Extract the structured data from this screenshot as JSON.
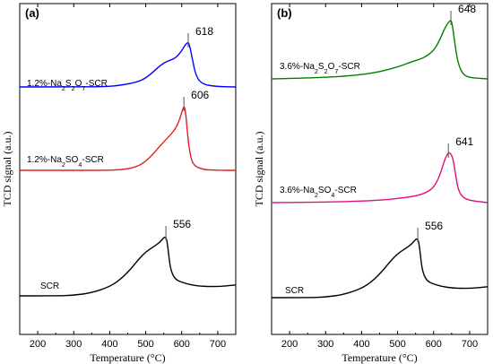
{
  "chart_data": [
    {
      "type": "line",
      "panel_label": "(a)",
      "xlabel": "Temperature (°C)",
      "ylabel": "TCD signal (a.u.)",
      "xlim": [
        150,
        750
      ],
      "xticks": [
        200,
        300,
        400,
        500,
        600,
        700
      ],
      "y_ticks_shown": false,
      "grid": false,
      "series": [
        {
          "name": "1.2%-Na2S2O7-SCR",
          "color": "#0000ff",
          "peak_label": "618",
          "x": [
            150,
            300,
            400,
            440,
            480,
            500,
            520,
            540,
            560,
            580,
            595,
            605,
            612,
            618,
            622,
            628,
            640,
            660,
            700,
            750
          ],
          "y": [
            0.0,
            0.0,
            0.01,
            0.05,
            0.12,
            0.2,
            0.33,
            0.48,
            0.58,
            0.63,
            0.75,
            0.88,
            0.96,
            1.0,
            0.92,
            0.68,
            0.22,
            0.05,
            0.01,
            0.0
          ]
        },
        {
          "name": "1.2%-Na2SO4-SCR",
          "color": "#e02020",
          "peak_label": "606",
          "x": [
            150,
            300,
            400,
            450,
            480,
            500,
            520,
            540,
            560,
            580,
            592,
            600,
            606,
            610,
            614,
            620,
            630,
            660,
            700,
            750
          ],
          "y": [
            0.0,
            0.0,
            0.0,
            0.02,
            0.07,
            0.14,
            0.25,
            0.38,
            0.5,
            0.62,
            0.75,
            0.9,
            1.0,
            0.93,
            0.7,
            0.35,
            0.08,
            0.01,
            0.0,
            0.0
          ]
        },
        {
          "name": "SCR",
          "color": "#000000",
          "peak_label": "556",
          "x": [
            150,
            250,
            300,
            350,
            400,
            430,
            460,
            480,
            500,
            520,
            540,
            556,
            562,
            568,
            580,
            600,
            640,
            700,
            750
          ],
          "y": [
            0.0,
            0.0,
            0.01,
            0.05,
            0.15,
            0.27,
            0.45,
            0.6,
            0.72,
            0.8,
            0.88,
            1.0,
            0.78,
            0.45,
            0.28,
            0.22,
            0.16,
            0.15,
            0.18
          ]
        }
      ]
    },
    {
      "type": "line",
      "panel_label": "(b)",
      "xlabel": "Temperature (°C)",
      "ylabel": "TCD signal (a.u.)",
      "xlim": [
        150,
        750
      ],
      "xticks": [
        200,
        300,
        400,
        500,
        600,
        700
      ],
      "y_ticks_shown": false,
      "grid": false,
      "series": [
        {
          "name": "3.6%-Na2S2O7-SCR",
          "color": "#008000",
          "peak_label": "648",
          "x": [
            150,
            300,
            400,
            450,
            500,
            530,
            560,
            580,
            600,
            615,
            628,
            640,
            648,
            652,
            658,
            666,
            680,
            700,
            750
          ],
          "y": [
            0.0,
            0.02,
            0.07,
            0.12,
            0.2,
            0.27,
            0.33,
            0.38,
            0.48,
            0.63,
            0.82,
            0.95,
            1.0,
            0.92,
            0.65,
            0.3,
            0.08,
            0.02,
            0.0
          ]
        },
        {
          "name": "3.6%-Na2SO4-SCR",
          "color": "#e0107a",
          "peak_label": "641",
          "x": [
            150,
            300,
            400,
            450,
            500,
            550,
            580,
            600,
            615,
            625,
            632,
            641,
            648,
            655,
            662,
            670,
            690,
            750
          ],
          "y": [
            0.0,
            0.01,
            0.03,
            0.05,
            0.08,
            0.13,
            0.2,
            0.3,
            0.5,
            0.72,
            0.88,
            1.0,
            0.98,
            0.85,
            0.5,
            0.2,
            0.05,
            0.0
          ]
        },
        {
          "name": "SCR",
          "color": "#000000",
          "peak_label": "556",
          "x": [
            150,
            250,
            300,
            350,
            400,
            430,
            460,
            480,
            500,
            520,
            540,
            556,
            562,
            568,
            580,
            600,
            640,
            700,
            750
          ],
          "y": [
            0.0,
            0.0,
            0.01,
            0.05,
            0.15,
            0.27,
            0.45,
            0.6,
            0.72,
            0.8,
            0.88,
            1.0,
            0.78,
            0.45,
            0.28,
            0.22,
            0.16,
            0.15,
            0.18
          ]
        }
      ]
    }
  ]
}
